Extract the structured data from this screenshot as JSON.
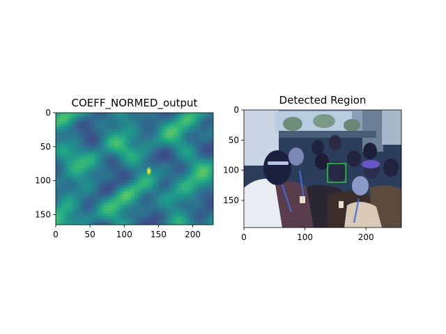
{
  "chart_data": [
    {
      "type": "heatmap",
      "title": "COEFF_NORMED_output",
      "xlabel": "",
      "ylabel": "",
      "xlim": [
        0,
        230
      ],
      "ylim": [
        165,
        0
      ],
      "xticks": [
        0,
        50,
        100,
        150,
        200
      ],
      "yticks": [
        0,
        50,
        100,
        150
      ],
      "colormap": "viridis",
      "peak": {
        "x": 136,
        "y": 86
      }
    },
    {
      "type": "image",
      "title": "Detected Region",
      "xlabel": "",
      "ylabel": "",
      "xlim": [
        0,
        258
      ],
      "ylim": [
        195,
        0
      ],
      "xticks": [
        0,
        100,
        200
      ],
      "yticks": [
        0,
        50,
        100,
        150
      ],
      "detected_box": {
        "x0": 137,
        "y0": 89,
        "x1": 167,
        "y1": 120
      },
      "box_color": "#2bd62b"
    }
  ]
}
